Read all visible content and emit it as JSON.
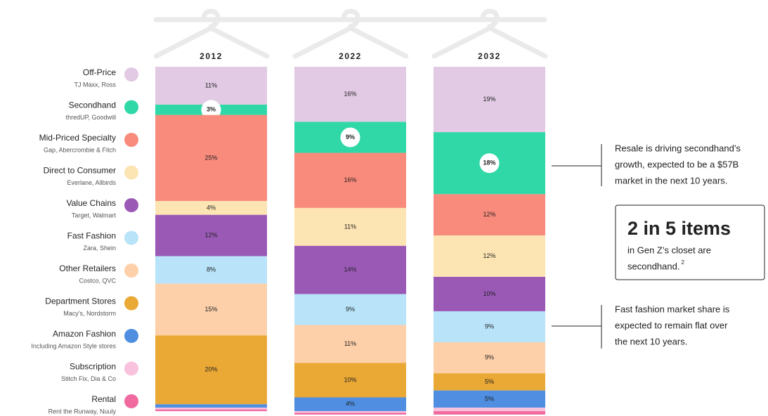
{
  "chart_data": {
    "type": "stacked-bar",
    "categories": [
      "2012",
      "2022",
      "2032"
    ],
    "ylim": [
      0,
      101
    ],
    "series": [
      {
        "name": "Off-Price",
        "examples": "TJ Maxx, Ross",
        "color": "#e2c9e4",
        "values": [
          11,
          16,
          19
        ],
        "value_labels": [
          "11%",
          "16%",
          "19%"
        ]
      },
      {
        "name": "Secondhand",
        "examples": "thredUP, Goodwill",
        "color": "#2fd8a6",
        "values": [
          3,
          9,
          18
        ],
        "value_labels": [
          "3%",
          "9%",
          "18%"
        ],
        "highlight": true
      },
      {
        "name": "Mid-Priced Specialty",
        "examples": "Gap, Abercrombie & Fitch",
        "color": "#f98b7c",
        "values": [
          25,
          16,
          12
        ],
        "value_labels": [
          "25%",
          "16%",
          "12%"
        ]
      },
      {
        "name": "Direct to Consumer",
        "examples": "Everlane, Allbirds",
        "color": "#fde4b3",
        "values": [
          4,
          11,
          12
        ],
        "value_labels": [
          "4%",
          "11%",
          "12%"
        ]
      },
      {
        "name": "Value Chains",
        "examples": "Target, Walmart",
        "color": "#9b59b6",
        "values": [
          12,
          14,
          10
        ],
        "value_labels": [
          "12%",
          "14%",
          "10%"
        ]
      },
      {
        "name": "Fast Fashion",
        "examples": "Zara, Shein",
        "color": "#b9e3f8",
        "values": [
          8,
          9,
          9
        ],
        "value_labels": [
          "8%",
          "9%",
          "9%"
        ]
      },
      {
        "name": "Other Retailers",
        "examples": "Costco, QVC",
        "color": "#fdd0aa",
        "values": [
          15,
          11,
          9
        ],
        "value_labels": [
          "15%",
          "11%",
          "9%"
        ]
      },
      {
        "name": "Department Stores",
        "examples": "Macy's, Nordstorm",
        "color": "#eaa935",
        "values": [
          20,
          10,
          5
        ],
        "value_labels": [
          "20%",
          "10%",
          "5%"
        ]
      },
      {
        "name": "Amazon Fashion",
        "examples": "Including Amazon Style stores",
        "color": "#4f8ee0",
        "values": [
          1,
          4,
          5
        ],
        "value_labels": [
          null,
          "4%",
          "5%"
        ]
      },
      {
        "name": "Subscription",
        "examples": "Stitch Fix, Dia & Co",
        "color": "#f9c2dd",
        "values": [
          0.5,
          0.5,
          1
        ],
        "value_labels": [
          null,
          null,
          null
        ]
      },
      {
        "name": "Rental",
        "examples": "Rent the Runway, Nuuly",
        "color": "#f06aa0",
        "values": [
          0.5,
          0.5,
          1
        ],
        "value_labels": [
          null,
          null,
          null
        ]
      }
    ],
    "annotations": [
      {
        "lines": [
          "Resale is driving secondhand’s",
          "growth, expected to be a $57B",
          "market in the next 10 years."
        ]
      },
      {
        "lines": [
          "Fast fashion market share is",
          "expected to remain flat over",
          "the next 10 years."
        ]
      }
    ],
    "callout": {
      "headline": "2 in 5 items",
      "lines": [
        "in Gen Z’s closet are",
        "secondhand."
      ],
      "superscript": "2"
    }
  }
}
